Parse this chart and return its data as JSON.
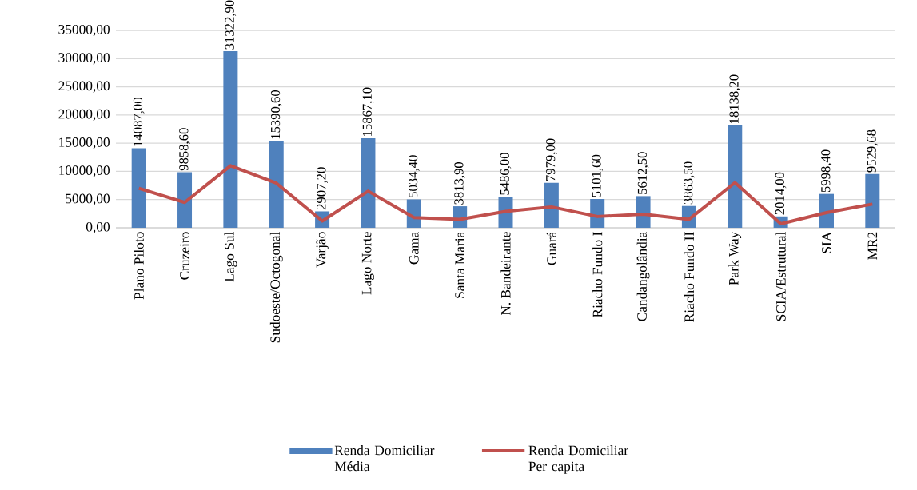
{
  "chart_data": {
    "type": "bar",
    "categories": [
      "Plano Piloto",
      "Cruzeiro",
      "Lago Sul",
      "Sudoeste/Octogonal",
      "Varjão",
      "Lago Norte",
      "Gama",
      "Santa Maria",
      "N. Bandeirante",
      "Guará",
      "Riacho Fundo I",
      "Candangolândia",
      "Riacho Fundo II",
      "Park Way",
      "SCIA/Estrutural",
      "SIA",
      "MR2"
    ],
    "series": [
      {
        "name": "Renda Domiciliar Média",
        "color": "#4f81bd",
        "values": [
          14087.0,
          9858.6,
          31322.9,
          15390.6,
          2907.2,
          15867.1,
          5034.4,
          3813.9,
          5486.0,
          7979.0,
          5101.6,
          5612.5,
          3863.5,
          18138.2,
          2014.0,
          5998.4,
          9529.68
        ],
        "value_labels": [
          "14087,00",
          "9858,60",
          "31322,90",
          "15390,60",
          "2907,20",
          "15867,10",
          "5034,40",
          "3813,90",
          "5486,00",
          "7979,00",
          "5101,60",
          "5612,50",
          "3863,50",
          "18138,20",
          "2014,00",
          "5998,40",
          "9529,68"
        ]
      },
      {
        "name": "Renda Domiciliar Per capita",
        "type": "line",
        "color": "#c0504d",
        "values": [
          7000,
          4500,
          11000,
          7900,
          1200,
          6500,
          1800,
          1500,
          2900,
          3700,
          2000,
          2400,
          1500,
          8000,
          700,
          2700,
          4200
        ]
      }
    ],
    "ylim": [
      0,
      35000
    ],
    "yticks": [
      {
        "value": 0,
        "label": "0,00"
      },
      {
        "value": 5000,
        "label": "5000,00"
      },
      {
        "value": 10000,
        "label": "10000,00"
      },
      {
        "value": 15000,
        "label": "15000,00"
      },
      {
        "value": 20000,
        "label": "20000,00"
      },
      {
        "value": 25000,
        "label": "25000,00"
      },
      {
        "value": 30000,
        "label": "30000,00"
      },
      {
        "value": 35000,
        "label": "35000,00"
      }
    ],
    "grid": "y",
    "legend": "bottom"
  }
}
